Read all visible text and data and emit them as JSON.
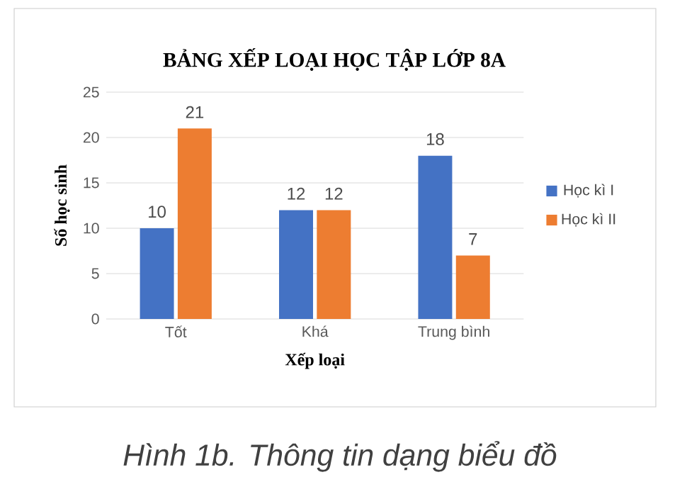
{
  "chart_data": {
    "type": "bar",
    "title": "BẢNG XẾP LOẠI HỌC TẬP LỚP 8A",
    "xlabel": "Xếp loại",
    "ylabel": "Số học sinh",
    "categories": [
      "Tốt",
      "Khá",
      "Trung bình"
    ],
    "series": [
      {
        "name": "Học kì I",
        "color": "#4472c4",
        "values": [
          10,
          12,
          18
        ]
      },
      {
        "name": "Học kì II",
        "color": "#ed7d31",
        "values": [
          21,
          12,
          7
        ]
      }
    ],
    "ylim": [
      0,
      25
    ],
    "yticks": [
      0,
      5,
      10,
      15,
      20,
      25
    ],
    "grid": "y",
    "legend": "right",
    "data_labels": true,
    "annotations": [
      "Hình 1b. Thông tin dạng biểu đồ"
    ]
  }
}
